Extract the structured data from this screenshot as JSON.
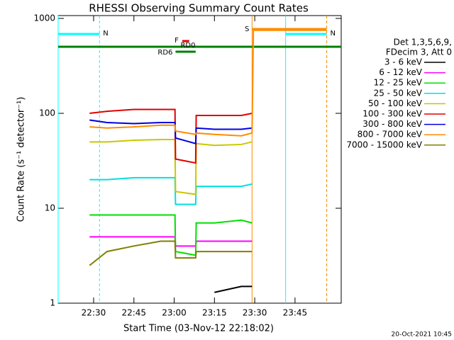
{
  "chart_data": {
    "type": "line",
    "title": "RHESSI Observing Summary Count Rates",
    "xlabel": "Start Time (03-Nov-12 22:18:02)",
    "ylabel": "Count Rate (s⁻¹ detector⁻¹)",
    "legend_title": [
      "Det 1,3,5,6,9,",
      "FDecim 3, Att 0"
    ],
    "footer": "20-Oct-2021 10:45",
    "log_y": true,
    "xlim": [
      16.8,
      122.2
    ],
    "xticks": [
      {
        "value": 30,
        "label": "22:30"
      },
      {
        "value": 45,
        "label": "22:45"
      },
      {
        "value": 60,
        "label": "23:00"
      },
      {
        "value": 75,
        "label": "23:15"
      },
      {
        "value": 90,
        "label": "23:30"
      },
      {
        "value": 105,
        "label": "23:45"
      }
    ],
    "ylim": [
      1,
      1000
    ],
    "yticks": [
      1,
      10,
      100,
      1000
    ],
    "x": [
      28.5,
      35,
      45,
      55,
      60.3,
      60.5,
      68,
      68.2,
      75,
      85,
      89,
      89.5,
      116.8
    ],
    "series": [
      {
        "name": "3 - 6 keV",
        "color": "#000000",
        "values": [
          null,
          null,
          null,
          null,
          null,
          null,
          null,
          null,
          1.3,
          1.5,
          1.5,
          null,
          null
        ]
      },
      {
        "name": "6 - 12 keV",
        "color": "#ff00ff",
        "values": [
          5,
          5,
          5,
          5,
          5,
          4,
          4,
          4.5,
          4.5,
          4.5,
          4.5,
          null,
          null
        ]
      },
      {
        "name": "12 - 25 keV",
        "color": "#00e000",
        "values": [
          8.5,
          8.5,
          8.5,
          8.5,
          8.5,
          3.5,
          3.2,
          7,
          7,
          7.5,
          7,
          null,
          null
        ]
      },
      {
        "name": "25 - 50 keV",
        "color": "#00e0e0",
        "values": [
          20,
          20,
          21,
          21,
          21,
          11,
          11,
          17,
          17,
          17,
          18,
          null,
          null
        ]
      },
      {
        "name": "50 - 100 keV",
        "color": "#c8c800",
        "values": [
          50,
          50,
          52,
          53,
          53,
          15,
          14,
          48,
          46,
          47,
          50,
          null,
          null
        ]
      },
      {
        "name": "100 - 300 keV",
        "color": "#e00000",
        "values": [
          100,
          105,
          110,
          110,
          110,
          33,
          30,
          95,
          95,
          95,
          100,
          null,
          null
        ]
      },
      {
        "name": "300 - 800 keV",
        "color": "#0000e0",
        "values": [
          85,
          80,
          78,
          80,
          80,
          55,
          48,
          70,
          68,
          68,
          70,
          null,
          null
        ]
      },
      {
        "name": "800 - 7000 keV",
        "color": "#ff8c00",
        "values": [
          72,
          70,
          72,
          75,
          75,
          65,
          60,
          62,
          60,
          58,
          62,
          750,
          750
        ]
      },
      {
        "name": "7000 - 15000 keV",
        "color": "#808000",
        "values": [
          2.5,
          3.5,
          4,
          4.5,
          4.5,
          3,
          3,
          3.5,
          3.5,
          3.5,
          3.5,
          null,
          null
        ]
      }
    ],
    "flags": [
      {
        "label": "N",
        "color": "#00ffff",
        "start": 16.8,
        "end": 32.2,
        "markers": true
      },
      {
        "label": "N",
        "color": "#00ffff",
        "start": 101.5,
        "end": 116.8,
        "markers": true
      },
      {
        "label": "S",
        "color": "#ff8c00",
        "start": 89,
        "end": 116.8,
        "markers": true
      },
      {
        "label": "F",
        "color": "#e00000",
        "start": 63,
        "end": 65.6,
        "markers": false
      },
      {
        "label": "RD0",
        "color": "#008000",
        "start": 16.8,
        "end": 122.2,
        "markers": false
      },
      {
        "label": "RD6",
        "color": "#008000",
        "start": 60.5,
        "end": 68,
        "markers": false
      }
    ]
  }
}
